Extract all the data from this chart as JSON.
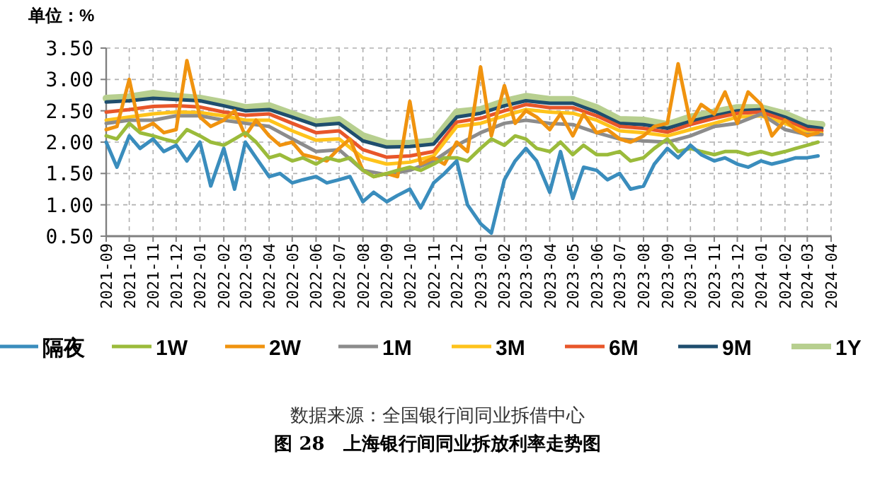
{
  "chart_data": {
    "type": "line",
    "ylabel": "单位：%",
    "title": "图 28　上海银行间同业拆放利率走势图",
    "annotations": [
      "数据来源：全国银行间同业拆借中心"
    ],
    "xlim": [
      "2021-09",
      "2024-04"
    ],
    "xticks": [
      {
        "value": "2021-09",
        "label": "2021-09"
      },
      {
        "value": "2021-10",
        "label": "2021-10"
      },
      {
        "value": "2021-11",
        "label": "2021-11"
      },
      {
        "value": "2021-12",
        "label": "2021-12"
      },
      {
        "value": "2022-01",
        "label": "2022-01"
      },
      {
        "value": "2022-02",
        "label": "2022-02"
      },
      {
        "value": "2022-03",
        "label": "2022-03"
      },
      {
        "value": "2022-04",
        "label": "2022-04"
      },
      {
        "value": "2022-05",
        "label": "2022-05"
      },
      {
        "value": "2022-06",
        "label": "2022-06"
      },
      {
        "value": "2022-07",
        "label": "2022-07"
      },
      {
        "value": "2022-08",
        "label": "2022-08"
      },
      {
        "value": "2022-09",
        "label": "2022-09"
      },
      {
        "value": "2022-10",
        "label": "2022-10"
      },
      {
        "value": "2022-11",
        "label": "2022-11"
      },
      {
        "value": "2022-12",
        "label": "2022-12"
      },
      {
        "value": "2023-01",
        "label": "2023-01"
      },
      {
        "value": "2023-02",
        "label": "2023-02"
      },
      {
        "value": "2023-03",
        "label": "2023-03"
      },
      {
        "value": "2023-04",
        "label": "2023-04"
      },
      {
        "value": "2023-05",
        "label": "2023-05"
      },
      {
        "value": "2023-06",
        "label": "2023-06"
      },
      {
        "value": "2023-07",
        "label": "2023-07"
      },
      {
        "value": "2023-08",
        "label": "2023-08"
      },
      {
        "value": "2023-09",
        "label": "2023-09"
      },
      {
        "value": "2023-10",
        "label": "2023-10"
      },
      {
        "value": "2023-11",
        "label": "2023-11"
      },
      {
        "value": "2023-12",
        "label": "2023-12"
      },
      {
        "value": "2024-01",
        "label": "2024-01"
      },
      {
        "value": "2024-02",
        "label": "2024-02"
      },
      {
        "value": "2024-03",
        "label": "2024-03"
      },
      {
        "value": "2024-04",
        "label": "2024-04"
      }
    ],
    "ylim": [
      0.5,
      3.5
    ],
    "yticks": [
      {
        "value": 0.5,
        "label": "0.50"
      },
      {
        "value": 1,
        "label": "1.00"
      },
      {
        "value": 1.5,
        "label": "1.50"
      },
      {
        "value": 2,
        "label": "2.00"
      },
      {
        "value": 2.5,
        "label": "2.50"
      },
      {
        "value": 3,
        "label": "3.00"
      },
      {
        "value": 3.5,
        "label": "3.50"
      }
    ],
    "grid": true,
    "legend": "bottom",
    "marker": "none",
    "line_style": "solid",
    "x": [
      "2021-09-01",
      "2021-09-15",
      "2021-10-01",
      "2021-10-15",
      "2021-11-01",
      "2021-11-15",
      "2021-12-01",
      "2021-12-15",
      "2022-01-01",
      "2022-01-15",
      "2022-02-01",
      "2022-02-15",
      "2022-03-01",
      "2022-03-15",
      "2022-04-01",
      "2022-04-15",
      "2022-05-01",
      "2022-05-15",
      "2022-06-01",
      "2022-06-15",
      "2022-07-01",
      "2022-07-15",
      "2022-08-01",
      "2022-08-15",
      "2022-09-01",
      "2022-09-15",
      "2022-10-01",
      "2022-10-15",
      "2022-11-01",
      "2022-11-15",
      "2022-12-01",
      "2022-12-15",
      "2023-01-01",
      "2023-01-15",
      "2023-02-01",
      "2023-02-15",
      "2023-03-01",
      "2023-03-15",
      "2023-04-01",
      "2023-04-15",
      "2023-05-01",
      "2023-05-15",
      "2023-06-01",
      "2023-06-15",
      "2023-07-01",
      "2023-07-15",
      "2023-08-01",
      "2023-08-15",
      "2023-09-01",
      "2023-09-15",
      "2023-10-01",
      "2023-10-15",
      "2023-11-01",
      "2023-11-15",
      "2023-12-01",
      "2023-12-15",
      "2024-01-01",
      "2024-01-15",
      "2024-02-01",
      "2024-02-15",
      "2024-03-01",
      "2024-03-15"
    ],
    "series": [
      {
        "name": "隔夜",
        "color": "#3a8dbd",
        "values": [
          2.0,
          1.6,
          2.1,
          1.9,
          2.05,
          1.85,
          1.95,
          1.7,
          2.0,
          1.3,
          1.9,
          1.25,
          2.0,
          1.75,
          1.45,
          1.5,
          1.35,
          1.4,
          1.45,
          1.35,
          1.4,
          1.45,
          1.05,
          1.2,
          1.05,
          1.15,
          1.25,
          0.95,
          1.35,
          1.5,
          1.7,
          1.0,
          0.7,
          0.55,
          1.4,
          1.7,
          1.9,
          1.7,
          1.2,
          1.85,
          1.1,
          1.6,
          1.55,
          1.4,
          1.5,
          1.25,
          1.3,
          1.65,
          1.9,
          1.75,
          1.95,
          1.8,
          1.7,
          1.75,
          1.65,
          1.6,
          1.7,
          1.65,
          1.7,
          1.75,
          1.75,
          1.78
        ]
      },
      {
        "name": "1W",
        "color": "#9bbb3b",
        "values": [
          2.1,
          2.05,
          2.3,
          2.15,
          2.1,
          2.05,
          2.0,
          2.2,
          2.1,
          2.0,
          1.95,
          2.05,
          2.15,
          2.0,
          1.75,
          1.8,
          1.7,
          1.75,
          1.65,
          1.75,
          1.7,
          1.75,
          1.55,
          1.45,
          1.5,
          1.55,
          1.6,
          1.55,
          1.65,
          1.75,
          1.75,
          1.7,
          1.9,
          2.05,
          1.95,
          2.1,
          2.05,
          1.9,
          1.85,
          2.0,
          1.8,
          1.95,
          1.8,
          1.8,
          1.85,
          1.7,
          1.75,
          1.9,
          2.05,
          1.85,
          1.9,
          1.85,
          1.8,
          1.85,
          1.85,
          1.8,
          1.85,
          1.8,
          1.85,
          1.9,
          1.95,
          2.0
        ]
      },
      {
        "name": "2W",
        "color": "#f0930f",
        "values": [
          2.2,
          2.25,
          3.0,
          2.2,
          2.3,
          2.15,
          2.2,
          3.3,
          2.4,
          2.25,
          2.35,
          2.5,
          2.1,
          2.35,
          2.1,
          1.95,
          2.0,
          1.8,
          1.75,
          1.7,
          1.9,
          2.05,
          1.55,
          1.45,
          1.5,
          1.45,
          2.65,
          1.65,
          1.75,
          1.65,
          2.0,
          1.85,
          3.2,
          2.1,
          2.9,
          2.3,
          2.5,
          2.4,
          2.2,
          2.45,
          2.1,
          2.45,
          2.15,
          2.2,
          2.05,
          2.0,
          2.1,
          2.25,
          2.3,
          3.25,
          2.3,
          2.6,
          2.45,
          2.8,
          2.3,
          2.8,
          2.6,
          2.1,
          2.35,
          2.2,
          2.1,
          2.15
        ]
      },
      {
        "name": "1M",
        "color": "#8c8c8c",
        "x": [
          "2021-09",
          "2021-10",
          "2021-11",
          "2021-12",
          "2022-01",
          "2022-02",
          "2022-03",
          "2022-04",
          "2022-05",
          "2022-06",
          "2022-07",
          "2022-08",
          "2022-09",
          "2022-10",
          "2022-11",
          "2022-12",
          "2023-01",
          "2023-02",
          "2023-03",
          "2023-04",
          "2023-05",
          "2023-06",
          "2023-07",
          "2023-08",
          "2023-09",
          "2023-10",
          "2023-11",
          "2023-12",
          "2024-01",
          "2024-02",
          "2024-03",
          "2024-03-20"
        ],
        "values": [
          2.3,
          2.35,
          2.35,
          2.42,
          2.42,
          2.35,
          2.3,
          2.25,
          2.05,
          1.85,
          1.88,
          1.55,
          1.48,
          1.55,
          1.7,
          1.95,
          2.15,
          2.3,
          2.35,
          2.3,
          2.28,
          2.15,
          2.05,
          2.02,
          2.0,
          2.1,
          2.25,
          2.3,
          2.45,
          2.2,
          2.12,
          2.12
        ]
      },
      {
        "name": "3M",
        "color": "#fec31b",
        "x": [
          "2021-09",
          "2021-10",
          "2021-11",
          "2021-12",
          "2022-01",
          "2022-02",
          "2022-03",
          "2022-04",
          "2022-05",
          "2022-06",
          "2022-07",
          "2022-08",
          "2022-09",
          "2022-10",
          "2022-11",
          "2022-12",
          "2023-01",
          "2023-02",
          "2023-03",
          "2023-04",
          "2023-05",
          "2023-06",
          "2023-07",
          "2023-08",
          "2023-09",
          "2023-10",
          "2023-11",
          "2023-12",
          "2024-01",
          "2024-02",
          "2024-03",
          "2024-03-20"
        ],
        "values": [
          2.35,
          2.4,
          2.45,
          2.48,
          2.47,
          2.42,
          2.35,
          2.35,
          2.18,
          2.03,
          2.05,
          1.75,
          1.65,
          1.68,
          1.78,
          2.25,
          2.3,
          2.42,
          2.52,
          2.48,
          2.46,
          2.35,
          2.18,
          2.15,
          2.1,
          2.2,
          2.3,
          2.4,
          2.42,
          2.3,
          2.15,
          2.14
        ]
      },
      {
        "name": "6M",
        "color": "#e8562a",
        "x": [
          "2021-09",
          "2021-10",
          "2021-11",
          "2021-12",
          "2022-01",
          "2022-02",
          "2022-03",
          "2022-04",
          "2022-05",
          "2022-06",
          "2022-07",
          "2022-08",
          "2022-09",
          "2022-10",
          "2022-11",
          "2022-12",
          "2023-01",
          "2023-02",
          "2023-03",
          "2023-04",
          "2023-05",
          "2023-06",
          "2023-07",
          "2023-08",
          "2023-09",
          "2023-10",
          "2023-11",
          "2023-12",
          "2024-01",
          "2024-02",
          "2024-03",
          "2024-03-20"
        ],
        "values": [
          2.48,
          2.52,
          2.57,
          2.58,
          2.56,
          2.48,
          2.43,
          2.45,
          2.3,
          2.15,
          2.18,
          1.88,
          1.76,
          1.78,
          1.85,
          2.32,
          2.38,
          2.5,
          2.6,
          2.55,
          2.55,
          2.42,
          2.25,
          2.22,
          2.16,
          2.28,
          2.38,
          2.46,
          2.48,
          2.35,
          2.2,
          2.18
        ]
      },
      {
        "name": "9M",
        "color": "#1f4e6e",
        "x": [
          "2021-09",
          "2021-10",
          "2021-11",
          "2021-12",
          "2022-01",
          "2022-02",
          "2022-03",
          "2022-04",
          "2022-05",
          "2022-06",
          "2022-07",
          "2022-08",
          "2022-09",
          "2022-10",
          "2022-11",
          "2022-12",
          "2023-01",
          "2023-02",
          "2023-03",
          "2023-04",
          "2023-05",
          "2023-06",
          "2023-07",
          "2023-08",
          "2023-09",
          "2023-10",
          "2023-11",
          "2023-12",
          "2024-01",
          "2024-02",
          "2024-03",
          "2024-03-20"
        ],
        "values": [
          2.64,
          2.66,
          2.7,
          2.68,
          2.66,
          2.58,
          2.5,
          2.52,
          2.4,
          2.27,
          2.3,
          2.02,
          1.92,
          1.93,
          1.97,
          2.4,
          2.46,
          2.58,
          2.66,
          2.62,
          2.62,
          2.48,
          2.3,
          2.28,
          2.22,
          2.33,
          2.42,
          2.5,
          2.52,
          2.4,
          2.25,
          2.22
        ]
      },
      {
        "name": "1Y",
        "color": "#b7cf8f",
        "x": [
          "2021-09",
          "2021-10",
          "2021-11",
          "2021-12",
          "2022-01",
          "2022-02",
          "2022-03",
          "2022-04",
          "2022-05",
          "2022-06",
          "2022-07",
          "2022-08",
          "2022-09",
          "2022-10",
          "2022-11",
          "2022-12",
          "2023-01",
          "2023-02",
          "2023-03",
          "2023-04",
          "2023-05",
          "2023-06",
          "2023-07",
          "2023-08",
          "2023-09",
          "2023-10",
          "2023-11",
          "2023-12",
          "2024-01",
          "2024-02",
          "2024-03",
          "2024-03-20"
        ],
        "values": [
          2.7,
          2.72,
          2.78,
          2.73,
          2.7,
          2.63,
          2.55,
          2.58,
          2.45,
          2.32,
          2.36,
          2.1,
          1.98,
          1.98,
          2.02,
          2.48,
          2.52,
          2.65,
          2.73,
          2.68,
          2.68,
          2.55,
          2.36,
          2.35,
          2.28,
          2.4,
          2.48,
          2.55,
          2.55,
          2.45,
          2.3,
          2.28
        ]
      }
    ]
  }
}
